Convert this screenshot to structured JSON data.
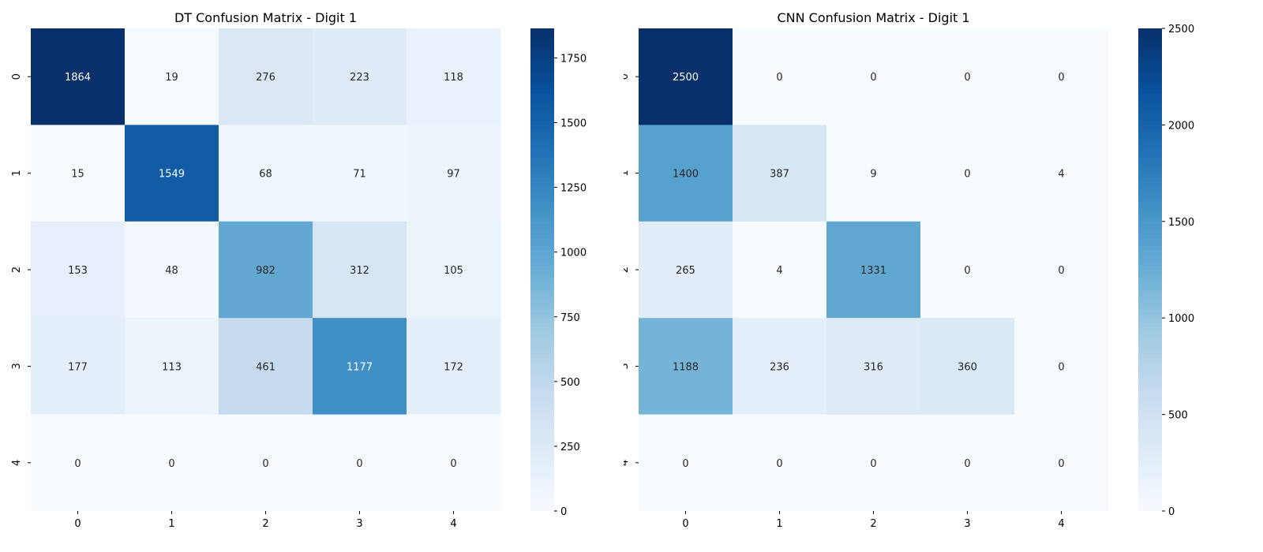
{
  "chart_data": [
    {
      "type": "heatmap",
      "title": "DT Confusion Matrix - Digit 1",
      "x_categories": [
        "0",
        "1",
        "2",
        "3",
        "4"
      ],
      "y_categories": [
        "0",
        "1",
        "2",
        "3",
        "4"
      ],
      "values": [
        [
          1864,
          19,
          276,
          223,
          118
        ],
        [
          15,
          1549,
          68,
          71,
          97
        ],
        [
          153,
          48,
          982,
          312,
          105
        ],
        [
          177,
          113,
          461,
          1177,
          172
        ],
        [
          0,
          0,
          0,
          0,
          0
        ]
      ],
      "colormap": "Blues",
      "vmin": 0,
      "vmax": 1864,
      "colorbar_ticks": [
        0,
        250,
        500,
        750,
        1000,
        1250,
        1500,
        1750
      ]
    },
    {
      "type": "heatmap",
      "title": "CNN Confusion Matrix - Digit 1",
      "x_categories": [
        "0",
        "1",
        "2",
        "3",
        "4"
      ],
      "y_categories": [
        "0",
        "1",
        "2",
        "3",
        "4"
      ],
      "values": [
        [
          2500,
          0,
          0,
          0,
          0
        ],
        [
          1400,
          387,
          9,
          0,
          4
        ],
        [
          265,
          4,
          1331,
          0,
          0
        ],
        [
          1188,
          236,
          316,
          360,
          0
        ],
        [
          0,
          0,
          0,
          0,
          0
        ]
      ],
      "colormap": "Blues",
      "vmin": 0,
      "vmax": 2500,
      "colorbar_ticks": [
        0,
        500,
        1000,
        1500,
        2000,
        2500
      ]
    }
  ]
}
